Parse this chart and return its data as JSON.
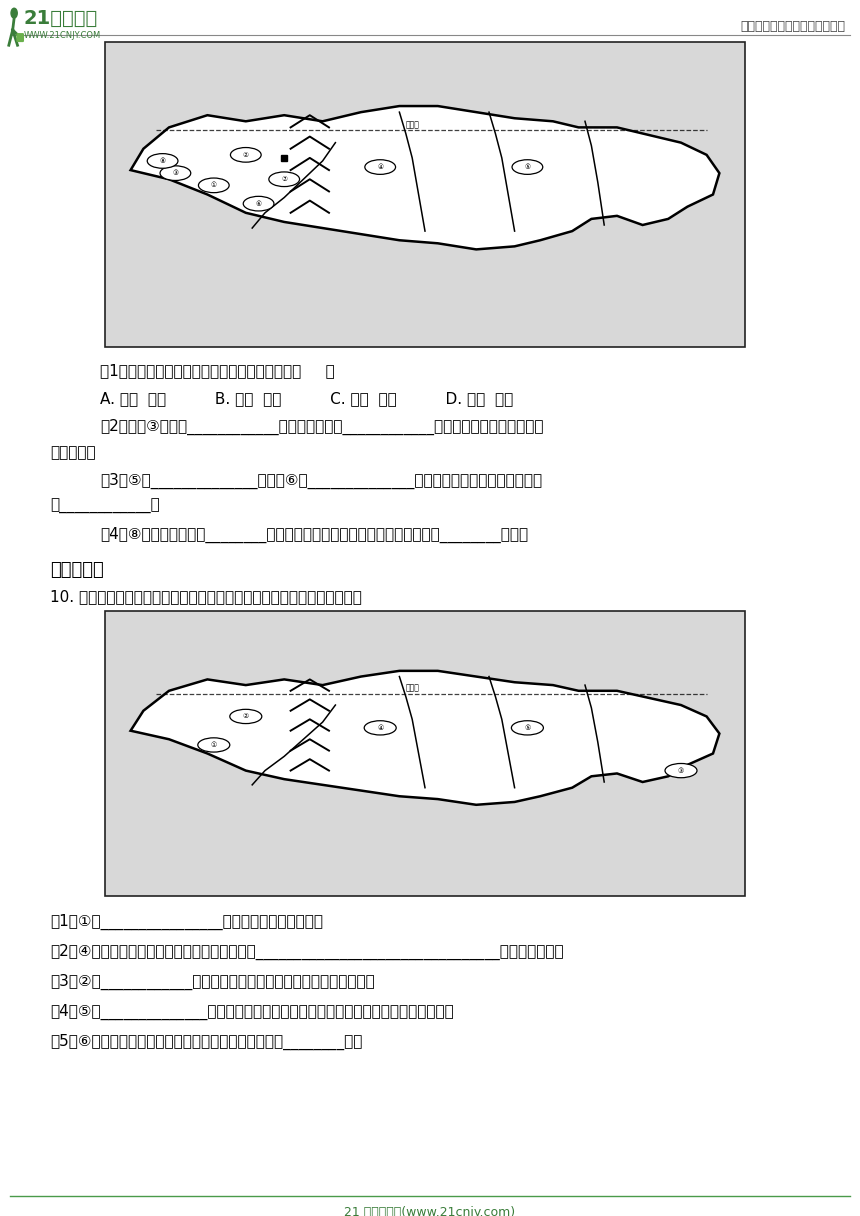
{
  "title_logo_text": "21世纪教育",
  "title_logo_sub": "WWW.21CNJY.COM",
  "header_right": "中小学教育资源及组卷应用平台",
  "footer_text": "21 世纪教育网(www.21cnjy.com)",
  "section4_title": "四、综合题",
  "q10_intro": "10. 下图是「俄罗斯城市、河流、地形分布略图」，填图并回答下列问题：",
  "q1_1": "（1）俄罗斯的大部分国土和大部分人口分别在（     ）",
  "q1_2": "A. 亚洲  亚洲          B. 欧洲  欧洲          C. 欧洲  亚洲          D. 亚洲  欧洲",
  "q1_3": "（2）图中③城市是____________，该市西部滨临____________海，是俄罗斯第二大城市和",
  "q1_3b": "重要港口。",
  "q1_4": "（3）⑤是______________平原，⑥是______________高原，该高原南部的大湖泊名称",
  "q1_4b": "是____________。",
  "q1_5": "（4）⑧是俄罗斯的首都________，俄罗斯欧洲部分的铁路网以城市为中心呈________分布。",
  "q2_1": "（1）①是________________港口；该港口终年不冻。",
  "q2_2": "（2）④是俄罗斯太平洋沿岸的最大海港，名称是________________________________（中俄均可）。",
  "q2_3": "（3）②是____________市，临波罗地海，该市是俄罗斯第二大城市。",
  "q2_4": "（4）⑤是______________平原，流经该平原中央的大河称鄂毕河，其上游发源于我国。",
  "q2_5": "（5）⑥是中西伯利亚高原，该高原南部的大湖泊名称是________湖。",
  "bg_color": "#ffffff",
  "text_color": "#000000",
  "line_color": "#333333",
  "logo_green": "#3a7d3a",
  "logo_light_green": "#6ab04c"
}
